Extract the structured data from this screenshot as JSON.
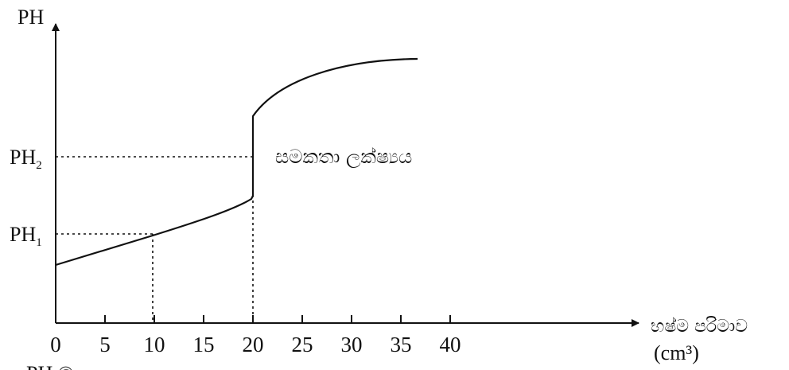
{
  "chart_data": {
    "type": "line",
    "y_axis_label": "PH",
    "x_axis_label": "භෂ්ම පරිමාව",
    "x_axis_unit": "(cm³)",
    "x_ticks": [
      0,
      5,
      10,
      15,
      20,
      25,
      30,
      35,
      40
    ],
    "y_marks": [
      {
        "label": "PH",
        "subscript": "1"
      },
      {
        "label": "PH",
        "subscript": "2"
      }
    ],
    "annotation": "සමකතා ලක්ෂ්‍යය",
    "curve": {
      "lower_segment": {
        "x": [
          0,
          10,
          20
        ],
        "y_level": [
          "below PH1",
          "PH1",
          "between PH1 and PH2"
        ]
      },
      "vertical_jump_at_x": 20,
      "upper_segment_end_x": 36
    },
    "equivalence_x": 20,
    "grid": false,
    "bottom_text_fragment": "PH  ©"
  }
}
